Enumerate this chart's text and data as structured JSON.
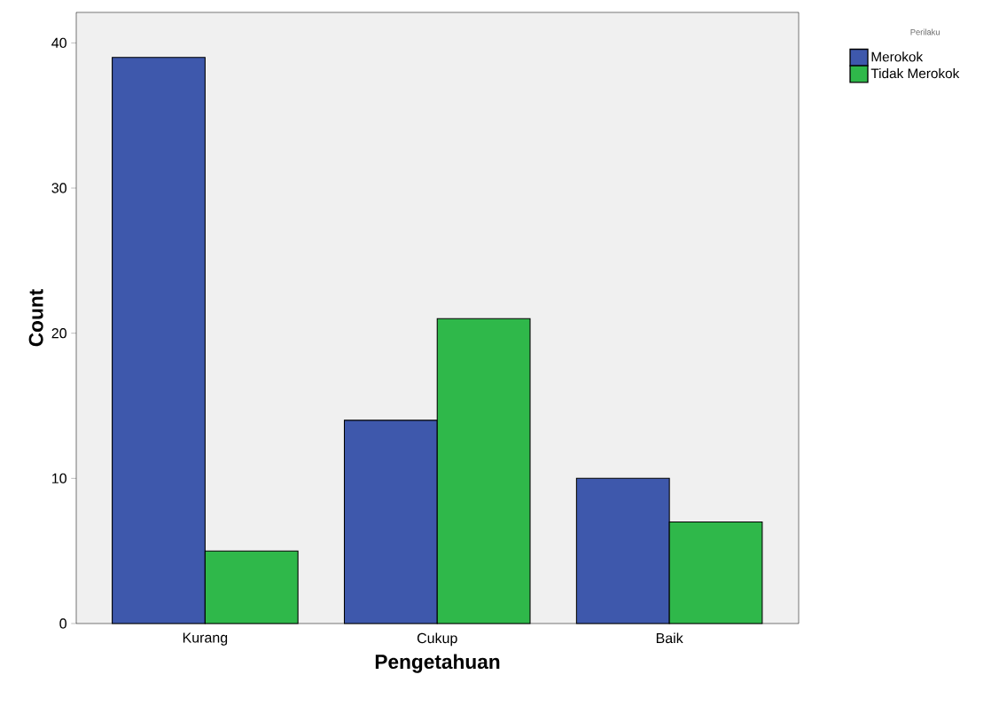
{
  "chart_data": {
    "type": "bar",
    "xlabel": "Pengetahuan",
    "ylabel": "Count",
    "legend_title": "Perilaku",
    "categories": [
      "Kurang",
      "Cukup",
      "Baik"
    ],
    "series": [
      {
        "name": "Merokok",
        "color": "#3e58ac",
        "values": [
          39,
          14,
          10
        ]
      },
      {
        "name": "Tidak Merokok",
        "color": "#2fb84a",
        "values": [
          5,
          21,
          7
        ]
      }
    ],
    "ylim": [
      0,
      42.1
    ],
    "yticks": [
      0,
      10,
      20,
      30,
      40
    ],
    "grid": false,
    "legend": "top right"
  }
}
